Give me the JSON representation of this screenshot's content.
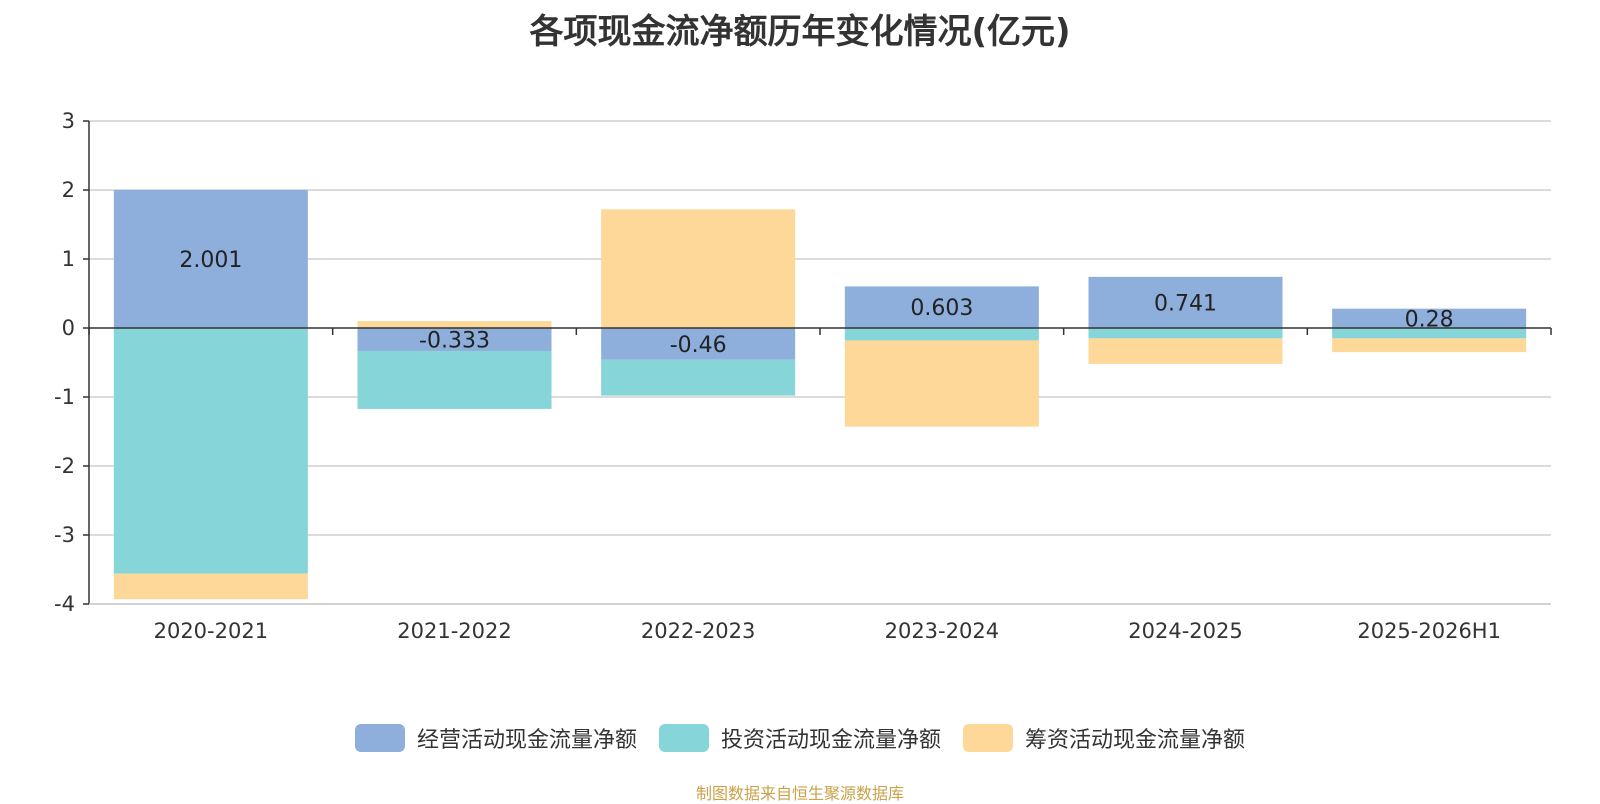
{
  "chart_data": {
    "type": "bar",
    "stacked": true,
    "title": "各项现金流净额历年变化情况(亿元)",
    "categories": [
      "2020-2021",
      "2021-2022",
      "2022-2023",
      "2023-2024",
      "2024-2025",
      "2025-2026H1"
    ],
    "ylim": [
      -4,
      3
    ],
    "yticks": [
      3,
      2,
      1,
      0,
      -1,
      -2,
      -3,
      -4
    ],
    "grid": true,
    "legend_position": "bottom",
    "series": [
      {
        "name": "经营活动现金流量净额",
        "color": "#8eaedb",
        "values": [
          2.001,
          -0.333,
          -0.46,
          0.603,
          0.741,
          0.28
        ],
        "labels": [
          "2.001",
          "-0.333",
          "-0.46",
          "0.603",
          "0.741",
          "0.28"
        ]
      },
      {
        "name": "投资活动现金流量净额",
        "color": "#86d5d8",
        "values": [
          -3.56,
          -0.84,
          -0.52,
          -0.18,
          -0.15,
          -0.15
        ]
      },
      {
        "name": "筹资活动现金流量净额",
        "color": "#fdd898",
        "values": [
          -0.37,
          0.1,
          1.72,
          -1.25,
          -0.37,
          -0.2
        ]
      }
    ]
  },
  "source": "制图数据来自恒生聚源数据库"
}
